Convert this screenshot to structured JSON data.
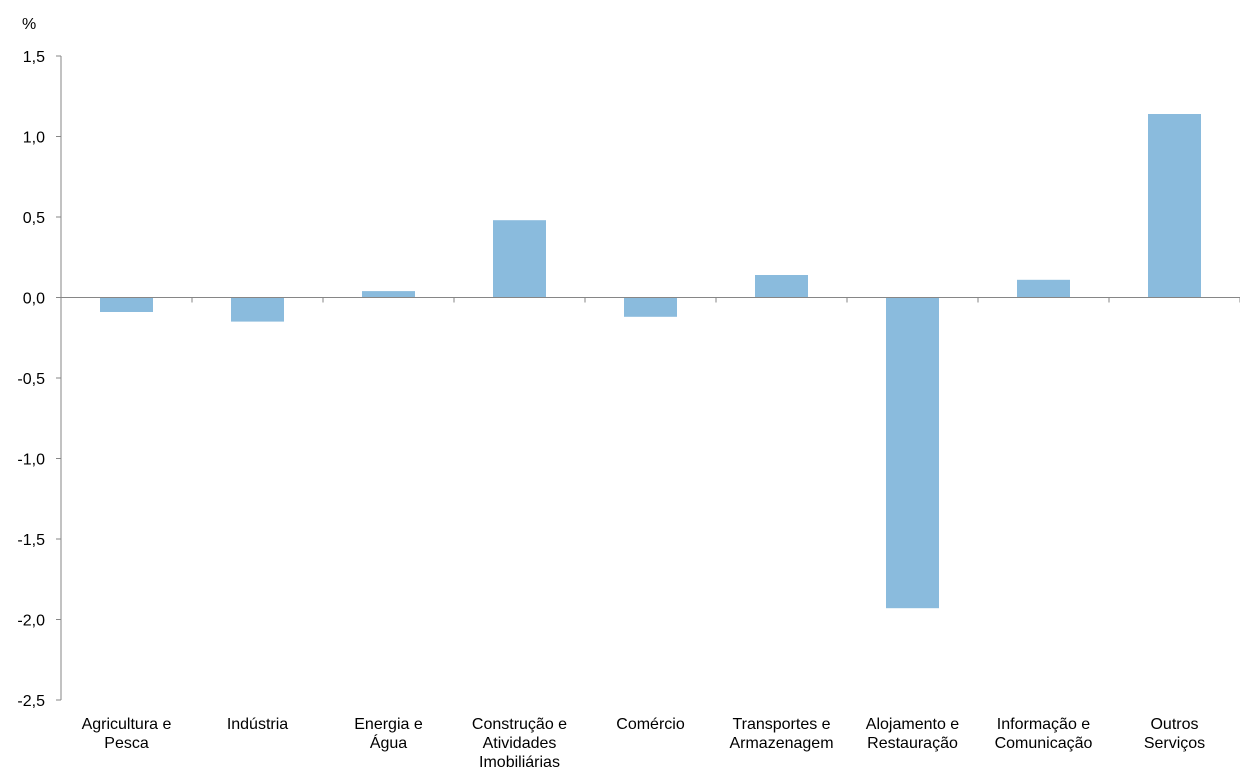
{
  "chart_data": {
    "type": "bar",
    "ylabel": "%",
    "ylim": [
      -2.5,
      1.5
    ],
    "yticks": [
      "1,5",
      "1,0",
      "0,5",
      "0,0",
      "-0,5",
      "-1,0",
      "-1,5",
      "-2,0",
      "-2,5"
    ],
    "ytick_values": [
      1.5,
      1.0,
      0.5,
      0.0,
      -0.5,
      -1.0,
      -1.5,
      -2.0,
      -2.5
    ],
    "categories": [
      [
        "Agricultura e",
        "Pesca"
      ],
      [
        "Indústria"
      ],
      [
        "Energia e",
        "Água"
      ],
      [
        "Construção e",
        "Atividades",
        "Imobiliárias"
      ],
      [
        "Comércio"
      ],
      [
        "Transportes e",
        "Armazenagem"
      ],
      [
        "Alojamento e",
        "Restauração"
      ],
      [
        "Informação e",
        "Comunicação"
      ],
      [
        "Outros",
        "Serviços"
      ]
    ],
    "values": [
      -0.09,
      -0.15,
      0.04,
      0.48,
      -0.12,
      0.14,
      -1.93,
      0.11,
      1.14
    ],
    "bar_color": "#8ABBDD",
    "axis_color": "#868686",
    "grid": false,
    "legend": "none"
  }
}
